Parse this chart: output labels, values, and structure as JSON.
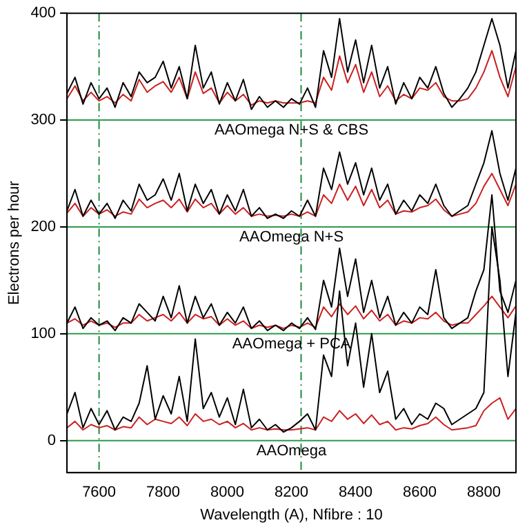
{
  "chart_data": {
    "type": "line",
    "xlabel": "Wavelength (A), Nfibre : 10",
    "ylabel": "Electrons per hour",
    "x": [
      7500,
      7525,
      7550,
      7575,
      7600,
      7625,
      7650,
      7675,
      7700,
      7725,
      7750,
      7775,
      7800,
      7825,
      7850,
      7875,
      7900,
      7925,
      7950,
      7975,
      8000,
      8025,
      8050,
      8075,
      8100,
      8125,
      8150,
      8175,
      8200,
      8225,
      8250,
      8275,
      8300,
      8325,
      8350,
      8375,
      8400,
      8425,
      8450,
      8475,
      8500,
      8525,
      8550,
      8575,
      8600,
      8625,
      8650,
      8675,
      8700,
      8725,
      8750,
      8775,
      8800,
      8825,
      8850,
      8875,
      8900
    ],
    "xlim": [
      7500,
      8900
    ],
    "xticks": [
      7600,
      7800,
      8000,
      8200,
      8400,
      8600,
      8800
    ],
    "ylim": [
      -30,
      400
    ],
    "yticks": [
      0,
      100,
      200,
      300,
      400
    ],
    "grid": false,
    "legend": false,
    "marker": "none",
    "line_style": "solid",
    "series": [
      {
        "color": "#000000",
        "values": [
          25,
          45,
          12,
          30,
          15,
          28,
          10,
          22,
          18,
          35,
          70,
          20,
          42,
          25,
          60,
          18,
          95,
          30,
          45,
          22,
          40,
          15,
          48,
          12,
          20,
          10,
          15,
          8,
          12,
          18,
          25,
          10,
          80,
          60,
          140,
          70,
          110,
          50,
          100,
          45,
          65,
          20,
          30,
          15,
          25,
          20,
          35,
          30,
          15,
          20,
          25,
          30,
          45,
          200,
          150,
          60,
          120
        ]
      },
      {
        "color": "#cc1f1f",
        "values": [
          12,
          18,
          10,
          15,
          12,
          14,
          10,
          13,
          12,
          22,
          15,
          20,
          18,
          16,
          22,
          14,
          25,
          18,
          20,
          15,
          18,
          12,
          16,
          10,
          12,
          10,
          11,
          10,
          10,
          11,
          12,
          10,
          22,
          18,
          28,
          20,
          25,
          16,
          24,
          15,
          18,
          10,
          12,
          11,
          14,
          16,
          22,
          15,
          10,
          11,
          12,
          14,
          28,
          35,
          40,
          20,
          30
        ]
      },
      {
        "color": "#000000",
        "values": [
          110,
          125,
          105,
          115,
          108,
          112,
          103,
          115,
          110,
          128,
          120,
          112,
          135,
          115,
          145,
          110,
          135,
          115,
          128,
          108,
          120,
          110,
          125,
          105,
          112,
          103,
          108,
          103,
          110,
          105,
          115,
          104,
          150,
          125,
          180,
          135,
          170,
          120,
          150,
          115,
          135,
          108,
          120,
          110,
          125,
          118,
          160,
          115,
          105,
          110,
          115,
          140,
          160,
          230,
          140,
          120,
          150
        ]
      },
      {
        "color": "#cc1f1f",
        "values": [
          110,
          114,
          108,
          112,
          108,
          110,
          106,
          110,
          110,
          118,
          112,
          115,
          118,
          112,
          120,
          110,
          118,
          114,
          116,
          108,
          114,
          108,
          112,
          105,
          108,
          106,
          108,
          105,
          108,
          106,
          110,
          106,
          125,
          116,
          128,
          118,
          126,
          114,
          122,
          112,
          118,
          108,
          112,
          110,
          115,
          114,
          120,
          112,
          108,
          110,
          110,
          118,
          126,
          135,
          125,
          115,
          126
        ]
      },
      {
        "color": "#000000",
        "values": [
          215,
          235,
          210,
          225,
          212,
          222,
          208,
          225,
          215,
          240,
          225,
          230,
          245,
          225,
          250,
          215,
          240,
          222,
          235,
          212,
          230,
          215,
          235,
          210,
          218,
          208,
          212,
          208,
          215,
          210,
          225,
          210,
          255,
          235,
          270,
          240,
          260,
          230,
          255,
          225,
          240,
          212,
          225,
          215,
          230,
          222,
          240,
          220,
          210,
          215,
          220,
          240,
          260,
          290,
          250,
          225,
          255
        ]
      },
      {
        "color": "#cc1f1f",
        "values": [
          213,
          222,
          210,
          218,
          212,
          216,
          210,
          214,
          212,
          226,
          218,
          222,
          225,
          218,
          226,
          214,
          226,
          218,
          222,
          212,
          220,
          212,
          218,
          210,
          212,
          210,
          211,
          210,
          212,
          210,
          214,
          210,
          230,
          222,
          240,
          225,
          238,
          220,
          235,
          218,
          225,
          212,
          215,
          214,
          218,
          220,
          226,
          216,
          210,
          212,
          214,
          222,
          238,
          250,
          235,
          220,
          240
        ]
      },
      {
        "color": "#000000",
        "values": [
          325,
          340,
          315,
          335,
          320,
          330,
          312,
          335,
          322,
          345,
          335,
          340,
          355,
          330,
          350,
          320,
          370,
          330,
          345,
          315,
          335,
          318,
          338,
          310,
          322,
          312,
          318,
          312,
          320,
          315,
          330,
          312,
          365,
          340,
          395,
          345,
          375,
          335,
          370,
          330,
          350,
          315,
          335,
          320,
          340,
          330,
          350,
          325,
          312,
          320,
          330,
          345,
          370,
          395,
          370,
          330,
          365
        ]
      },
      {
        "color": "#cc1f1f",
        "values": [
          320,
          332,
          318,
          326,
          318,
          322,
          316,
          324,
          318,
          338,
          326,
          332,
          336,
          326,
          340,
          320,
          345,
          325,
          330,
          316,
          326,
          318,
          324,
          314,
          318,
          316,
          318,
          316,
          316,
          316,
          318,
          316,
          340,
          328,
          360,
          335,
          352,
          326,
          345,
          322,
          332,
          318,
          324,
          320,
          330,
          328,
          335,
          322,
          318,
          318,
          320,
          330,
          345,
          365,
          340,
          322,
          350
        ]
      }
    ],
    "ref_lines": [
      {
        "axis": "y",
        "value": 0,
        "label": "AAOmega",
        "color": "#2e9a4a",
        "line_style": "solid"
      },
      {
        "axis": "y",
        "value": 100,
        "label": "AAOmega + PCA",
        "color": "#2e9a4a",
        "line_style": "solid"
      },
      {
        "axis": "y",
        "value": 200,
        "label": "AAOmega N+S",
        "color": "#2e9a4a",
        "line_style": "solid"
      },
      {
        "axis": "y",
        "value": 300,
        "label": "AAOmega N+S & CBS",
        "color": "#2e9a4a",
        "line_style": "solid"
      },
      {
        "axis": "x",
        "value": 7600,
        "color": "#1e8a3a",
        "line_style": "dashdot"
      },
      {
        "axis": "x",
        "value": 8230,
        "color": "#1e8a3a",
        "line_style": "dashdot"
      }
    ]
  }
}
